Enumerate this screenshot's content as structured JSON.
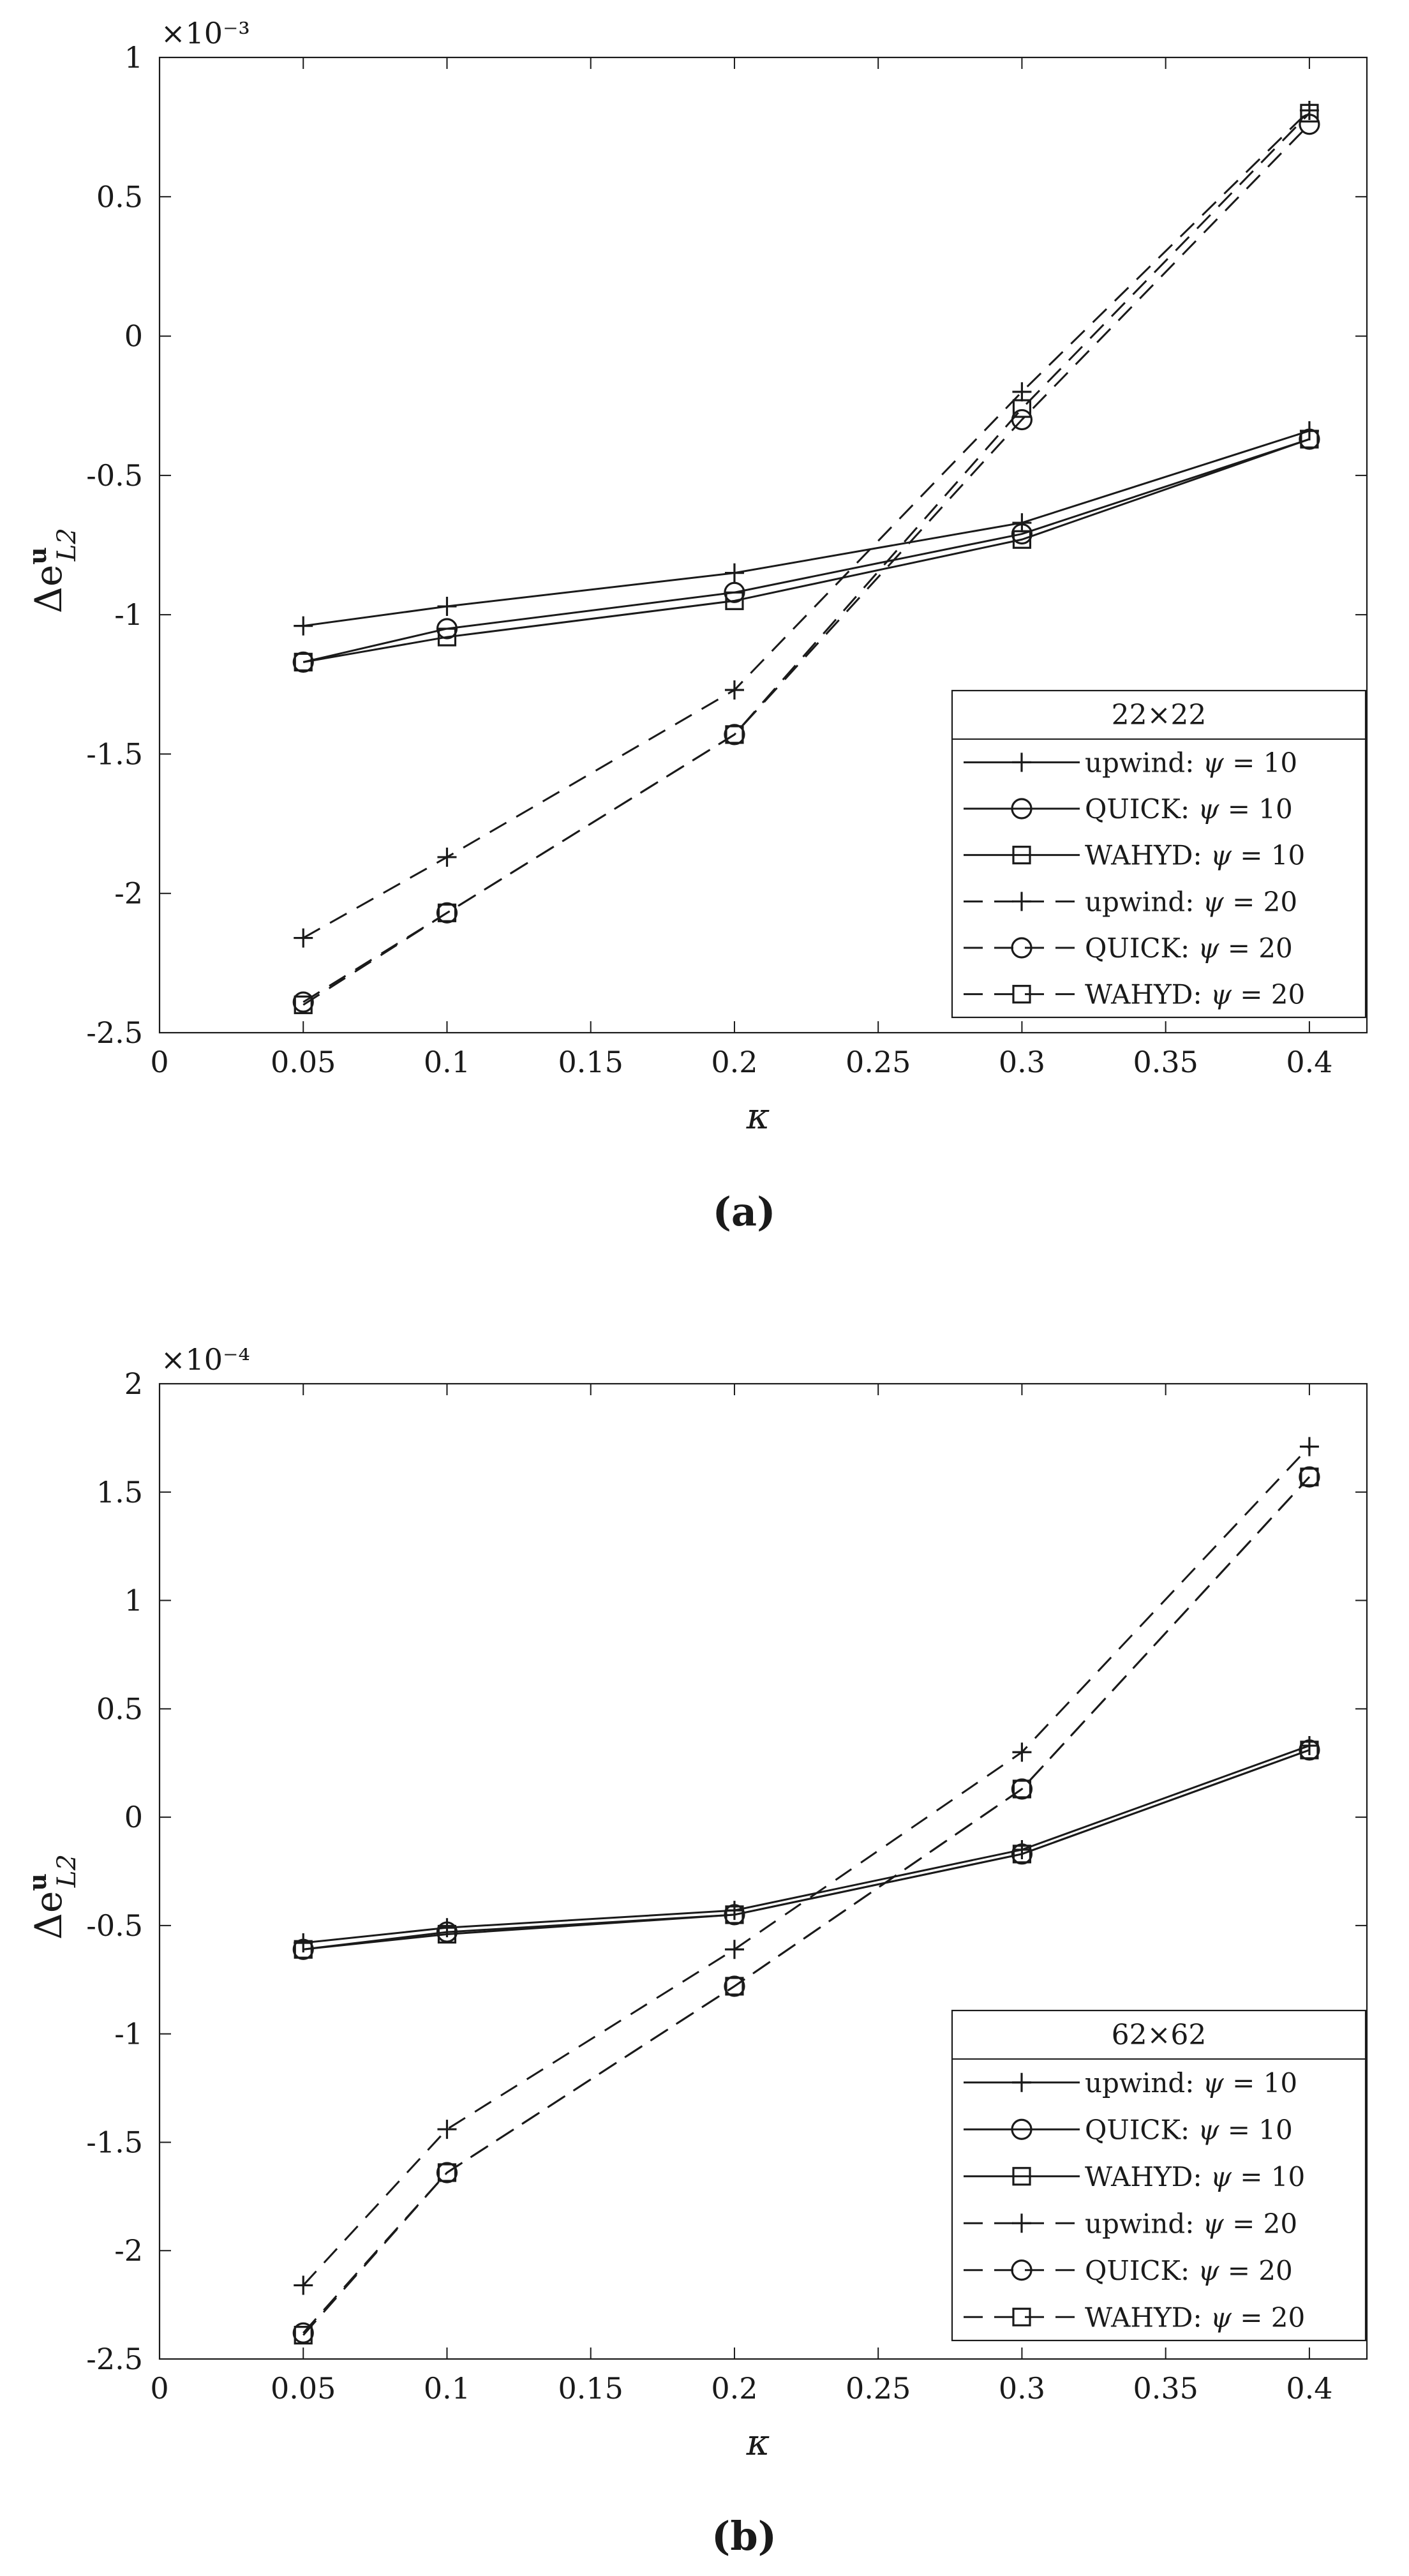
{
  "figure": {
    "panels": [
      {
        "caption": "(a)",
        "exponent_label": "×10⁻³",
        "ylabel_main": "Δe",
        "ylabel_sup": "u",
        "ylabel_sub": "L2",
        "xlabel": "κ",
        "legend_title": "22×22"
      },
      {
        "caption": "(b)",
        "exponent_label": "×10⁻⁴",
        "ylabel_main": "Δe",
        "ylabel_sup": "u",
        "ylabel_sub": "L2",
        "xlabel": "κ",
        "legend_title": "62×62"
      }
    ]
  },
  "chart_data": [
    {
      "type": "line",
      "panel": "a",
      "title": "",
      "xlabel": "κ",
      "ylabel": "Δe^u_L2",
      "y_scale_factor": "×10^-3",
      "xlim": [
        0,
        0.42
      ],
      "ylim": [
        -2.5,
        1
      ],
      "xticks": [
        0,
        0.05,
        0.1,
        0.15,
        0.2,
        0.25,
        0.3,
        0.35,
        0.4
      ],
      "xtick_labels": [
        "0",
        "0.05",
        "0.1",
        "0.15",
        "0.2",
        "0.25",
        "0.3",
        "0.35",
        "0.4"
      ],
      "yticks": [
        -2.5,
        -2,
        -1.5,
        -1,
        -0.5,
        0,
        0.5,
        1
      ],
      "ytick_labels": [
        "-2.5",
        "-2",
        "-1.5",
        "-1",
        "-0.5",
        "0",
        "0.5",
        "1"
      ],
      "grid": false,
      "legend_title": "22×22",
      "legend_position": "bottom-right",
      "x": [
        0.05,
        0.1,
        0.2,
        0.3,
        0.4
      ],
      "series": [
        {
          "name": "upwind: ψ = 10",
          "scheme": "upwind",
          "psi": "10",
          "line": "solid",
          "marker": "plus",
          "values": [
            -1.04,
            -0.97,
            -0.85,
            -0.67,
            -0.34
          ]
        },
        {
          "name": "QUICK: ψ = 10",
          "scheme": "QUICK",
          "psi": "10",
          "line": "solid",
          "marker": "circle",
          "values": [
            -1.17,
            -1.05,
            -0.92,
            -0.71,
            -0.37
          ]
        },
        {
          "name": "WAHYD: ψ = 10",
          "scheme": "WAHYD",
          "psi": "10",
          "line": "solid",
          "marker": "square",
          "values": [
            -1.17,
            -1.08,
            -0.95,
            -0.73,
            -0.37
          ]
        },
        {
          "name": "upwind: ψ = 20",
          "scheme": "upwind",
          "psi": "20",
          "line": "dashed",
          "marker": "plus",
          "values": [
            -2.16,
            -1.87,
            -1.27,
            -0.2,
            0.81
          ]
        },
        {
          "name": "QUICK: ψ = 20",
          "scheme": "QUICK",
          "psi": "20",
          "line": "dashed",
          "marker": "circle",
          "values": [
            -2.39,
            -2.07,
            -1.43,
            -0.3,
            0.76
          ]
        },
        {
          "name": "WAHYD: ψ = 20",
          "scheme": "WAHYD",
          "psi": "20",
          "line": "dashed",
          "marker": "square",
          "values": [
            -2.4,
            -2.07,
            -1.43,
            -0.26,
            0.8
          ]
        }
      ]
    },
    {
      "type": "line",
      "panel": "b",
      "title": "",
      "xlabel": "κ",
      "ylabel": "Δe^u_L2",
      "y_scale_factor": "×10^-4",
      "xlim": [
        0,
        0.42
      ],
      "ylim": [
        -2.5,
        2
      ],
      "xticks": [
        0,
        0.05,
        0.1,
        0.15,
        0.2,
        0.25,
        0.3,
        0.35,
        0.4
      ],
      "xtick_labels": [
        "0",
        "0.05",
        "0.1",
        "0.15",
        "0.2",
        "0.25",
        "0.3",
        "0.35",
        "0.4"
      ],
      "yticks": [
        -2.5,
        -2,
        -1.5,
        -1,
        -0.5,
        0,
        0.5,
        1,
        1.5,
        2
      ],
      "ytick_labels": [
        "-2.5",
        "-2",
        "-1.5",
        "-1",
        "-0.5",
        "0",
        "0.5",
        "1",
        "1.5",
        "2"
      ],
      "grid": false,
      "legend_title": "62×62",
      "legend_position": "bottom-right",
      "x": [
        0.05,
        0.1,
        0.2,
        0.3,
        0.4
      ],
      "series": [
        {
          "name": "upwind: ψ = 10",
          "scheme": "upwind",
          "psi": "10",
          "line": "solid",
          "marker": "plus",
          "values": [
            -0.58,
            -0.51,
            -0.43,
            -0.15,
            0.33
          ]
        },
        {
          "name": "QUICK: ψ = 10",
          "scheme": "QUICK",
          "psi": "10",
          "line": "solid",
          "marker": "circle",
          "values": [
            -0.61,
            -0.53,
            -0.45,
            -0.17,
            0.31
          ]
        },
        {
          "name": "WAHYD: ψ = 10",
          "scheme": "WAHYD",
          "psi": "10",
          "line": "solid",
          "marker": "square",
          "values": [
            -0.61,
            -0.54,
            -0.45,
            -0.17,
            0.31
          ]
        },
        {
          "name": "upwind: ψ = 20",
          "scheme": "upwind",
          "psi": "20",
          "line": "dashed",
          "marker": "plus",
          "values": [
            -2.16,
            -1.44,
            -0.61,
            0.3,
            1.71
          ]
        },
        {
          "name": "QUICK: ψ = 20",
          "scheme": "QUICK",
          "psi": "20",
          "line": "dashed",
          "marker": "circle",
          "values": [
            -2.38,
            -1.64,
            -0.78,
            0.13,
            1.57
          ]
        },
        {
          "name": "WAHYD: ψ = 20",
          "scheme": "WAHYD",
          "psi": "20",
          "line": "dashed",
          "marker": "square",
          "values": [
            -2.39,
            -1.64,
            -0.78,
            0.13,
            1.57
          ]
        }
      ]
    }
  ]
}
